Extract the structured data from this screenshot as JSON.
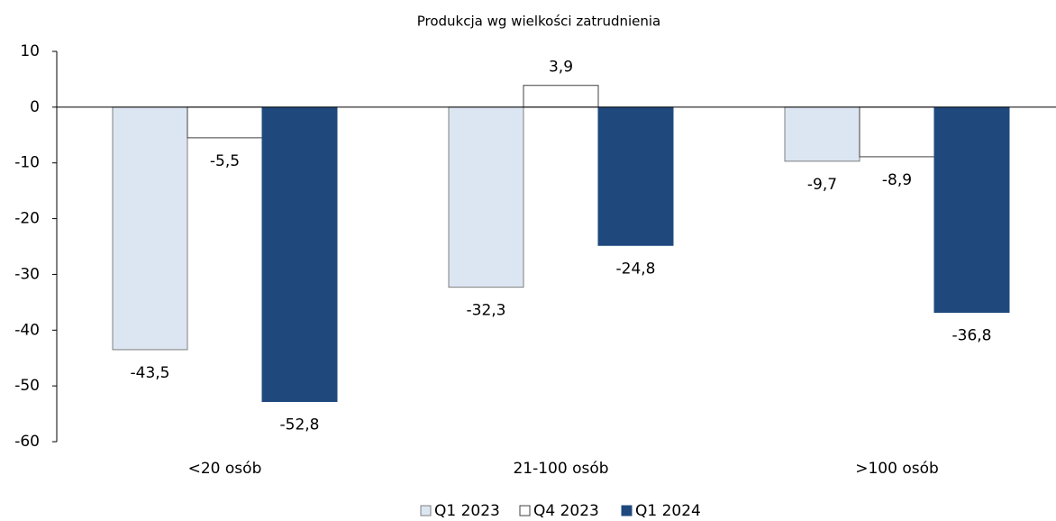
{
  "chart_data": {
    "type": "bar",
    "title": "Produkcja wg wielkości zatrudnienia",
    "categories": [
      "<20 osób",
      "21-100 osób",
      ">100 osób"
    ],
    "series": [
      {
        "name": "Q1 2023",
        "color": "#dce6f2",
        "values": [
          -43.5,
          -32.3,
          -9.7
        ],
        "value_labels": [
          "-43,5",
          "-32,3",
          "-9,7"
        ]
      },
      {
        "name": "Q4 2023",
        "color": "#ffffff",
        "values": [
          -5.5,
          3.9,
          -8.9
        ],
        "value_labels": [
          "-5,5",
          "3,9",
          "-8,9"
        ]
      },
      {
        "name": "Q1 2024",
        "color": "#1f497d",
        "values": [
          -52.8,
          -24.8,
          -36.8
        ],
        "value_labels": [
          "-52,8",
          "-24,8",
          "-36,8"
        ]
      }
    ],
    "ylim": [
      -60,
      10
    ],
    "yticks": [
      -60,
      -50,
      -40,
      -30,
      -20,
      -10,
      0,
      10
    ],
    "legend": "bottom"
  }
}
